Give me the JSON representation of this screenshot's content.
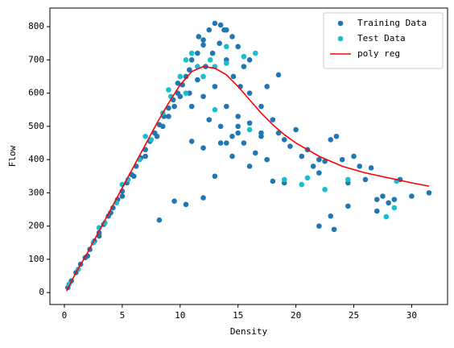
{
  "chart_data": {
    "type": "scatter",
    "xlabel": "Density",
    "ylabel": "Flow",
    "xlim": [
      -1.25,
      33.1
    ],
    "ylim": [
      -36,
      856
    ],
    "xticks": [
      0,
      5,
      10,
      15,
      20,
      25,
      30
    ],
    "yticks": [
      0,
      100,
      200,
      300,
      400,
      500,
      600,
      700,
      800
    ],
    "grid": false,
    "legend": "upper right",
    "series": [
      {
        "name": "Training Data",
        "type": "scatter",
        "color": "#1f77b4",
        "x": [
          0.3,
          0.6,
          1,
          1.4,
          1.8,
          2.2,
          2.6,
          3,
          3.4,
          3.8,
          4.2,
          4.6,
          5,
          5.4,
          5.8,
          6.2,
          6.6,
          7,
          7.4,
          7.8,
          8.2,
          8.6,
          9,
          9.4,
          9.8,
          10.2,
          2,
          3,
          4,
          5,
          6,
          7,
          8,
          8.5,
          9,
          9.5,
          10,
          10.5,
          11,
          11.5,
          12,
          12.5,
          13,
          13.5,
          14,
          14.5,
          15,
          10.8,
          11.5,
          12.2,
          12.8,
          13.4,
          14,
          14.6,
          15.2,
          11,
          12,
          13,
          14,
          15,
          16,
          12.5,
          13.5,
          14.5,
          15.5,
          11,
          12,
          13.5,
          14.5,
          13,
          10.5,
          9.5,
          8.2,
          12,
          16.5,
          17,
          17,
          18,
          18.5,
          19,
          19.5,
          20,
          20.5,
          21,
          21.5,
          22,
          22,
          22.5,
          23,
          23.5,
          24,
          24.5,
          25,
          25.5,
          26,
          26.5,
          27,
          27.5,
          28,
          28.5,
          29,
          30,
          31.5,
          23,
          23.3,
          22,
          24.5,
          27,
          18,
          19,
          17.5,
          16,
          14,
          15,
          16,
          17,
          17.5,
          18.5,
          16,
          15.5,
          12,
          13.8,
          11.6,
          10.8,
          9.8,
          15
        ],
        "values": [
          15,
          35,
          60,
          85,
          105,
          130,
          155,
          180,
          205,
          230,
          255,
          280,
          305,
          330,
          355,
          380,
          405,
          430,
          455,
          480,
          505,
          530,
          555,
          580,
          600,
          625,
          110,
          170,
          240,
          290,
          350,
          410,
          470,
          500,
          530,
          560,
          590,
          650,
          700,
          720,
          760,
          790,
          810,
          805,
          790,
          770,
          740,
          600,
          640,
          680,
          720,
          750,
          700,
          650,
          620,
          560,
          590,
          620,
          560,
          530,
          600,
          520,
          500,
          470,
          450,
          455,
          435,
          450,
          410,
          350,
          265,
          275,
          218,
          285,
          420,
          560,
          480,
          520,
          480,
          460,
          440,
          490,
          410,
          430,
          380,
          360,
          400,
          395,
          460,
          470,
          400,
          330,
          410,
          380,
          340,
          375,
          280,
          290,
          270,
          280,
          340,
          290,
          300,
          230,
          190,
          200,
          260,
          245,
          335,
          330,
          400,
          380,
          450,
          480,
          510,
          470,
          620,
          655,
          700,
          680,
          745,
          790,
          770,
          670,
          630,
          500
        ]
      },
      {
        "name": "Test Data",
        "type": "scatter",
        "color": "#17becf",
        "x": [
          0.4,
          1.2,
          2.5,
          3.5,
          4.5,
          5.5,
          6.5,
          7.5,
          8.5,
          9.2,
          10,
          10.5,
          11,
          11.5,
          12,
          12.6,
          13,
          14,
          15.5,
          16.5,
          14,
          13,
          10.5,
          16,
          20.5,
          21,
          22.5,
          24.5,
          27.8,
          28.5,
          28.7,
          19,
          9,
          7,
          3,
          5
        ],
        "values": [
          25,
          70,
          150,
          210,
          270,
          340,
          400,
          460,
          540,
          590,
          650,
          700,
          720,
          680,
          650,
          700,
          680,
          740,
          710,
          720,
          690,
          550,
          600,
          490,
          325,
          345,
          310,
          340,
          228,
          255,
          335,
          340,
          610,
          470,
          195,
          325
        ]
      },
      {
        "name": "poly reg",
        "type": "line",
        "color": "#ff0000",
        "x": [
          0.2,
          1,
          2,
          3,
          4,
          5,
          6,
          7,
          8,
          9,
          10,
          11,
          12,
          13,
          14,
          15,
          16,
          17,
          18,
          19,
          20,
          22,
          24,
          26,
          28,
          30,
          31.5
        ],
        "values": [
          5,
          60,
          120,
          185,
          250,
          315,
          380,
          445,
          510,
          570,
          625,
          665,
          680,
          675,
          655,
          620,
          580,
          540,
          505,
          475,
          450,
          410,
          380,
          360,
          345,
          330,
          320
        ]
      }
    ]
  }
}
